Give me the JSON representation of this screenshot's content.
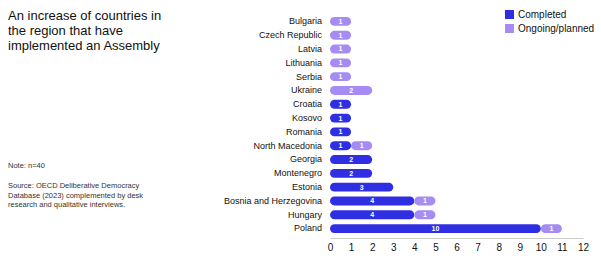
{
  "chart_data": {
    "type": "bar",
    "orientation": "horizontal",
    "stacked": true,
    "data_labels": true,
    "title": "An increase of countries in the region that have implemented an Assembly",
    "annotations": [
      "Note: n=40",
      "Source: OECD Deliberative Democracy Database (2023) complemented by desk research and qualitative interviews."
    ],
    "categories": [
      "Bulgaria",
      "Czech Republic",
      "Latvia",
      "Lithuania",
      "Serbia",
      "Ukraine",
      "Croatia",
      "Kosovo",
      "Romania",
      "North Macedonia",
      "Georgia",
      "Montenegro",
      "Estonia",
      "Bosnia and Herzegovina",
      "Hungary",
      "Poland"
    ],
    "series": [
      {
        "name": "Completed",
        "color": "#2f2ee3",
        "values": [
          0,
          0,
          0,
          0,
          0,
          0,
          1,
          1,
          1,
          1,
          2,
          2,
          3,
          4,
          4,
          10
        ]
      },
      {
        "name": "Ongoing/planned",
        "color": "#a68cf2",
        "values": [
          1,
          1,
          1,
          1,
          1,
          2,
          0,
          0,
          0,
          1,
          0,
          0,
          0,
          1,
          1,
          1
        ]
      }
    ],
    "xlim": [
      0,
      12
    ],
    "xticks": [
      0,
      1,
      2,
      3,
      4,
      5,
      6,
      7,
      8,
      9,
      10,
      11,
      12
    ],
    "legend": "top-right"
  }
}
